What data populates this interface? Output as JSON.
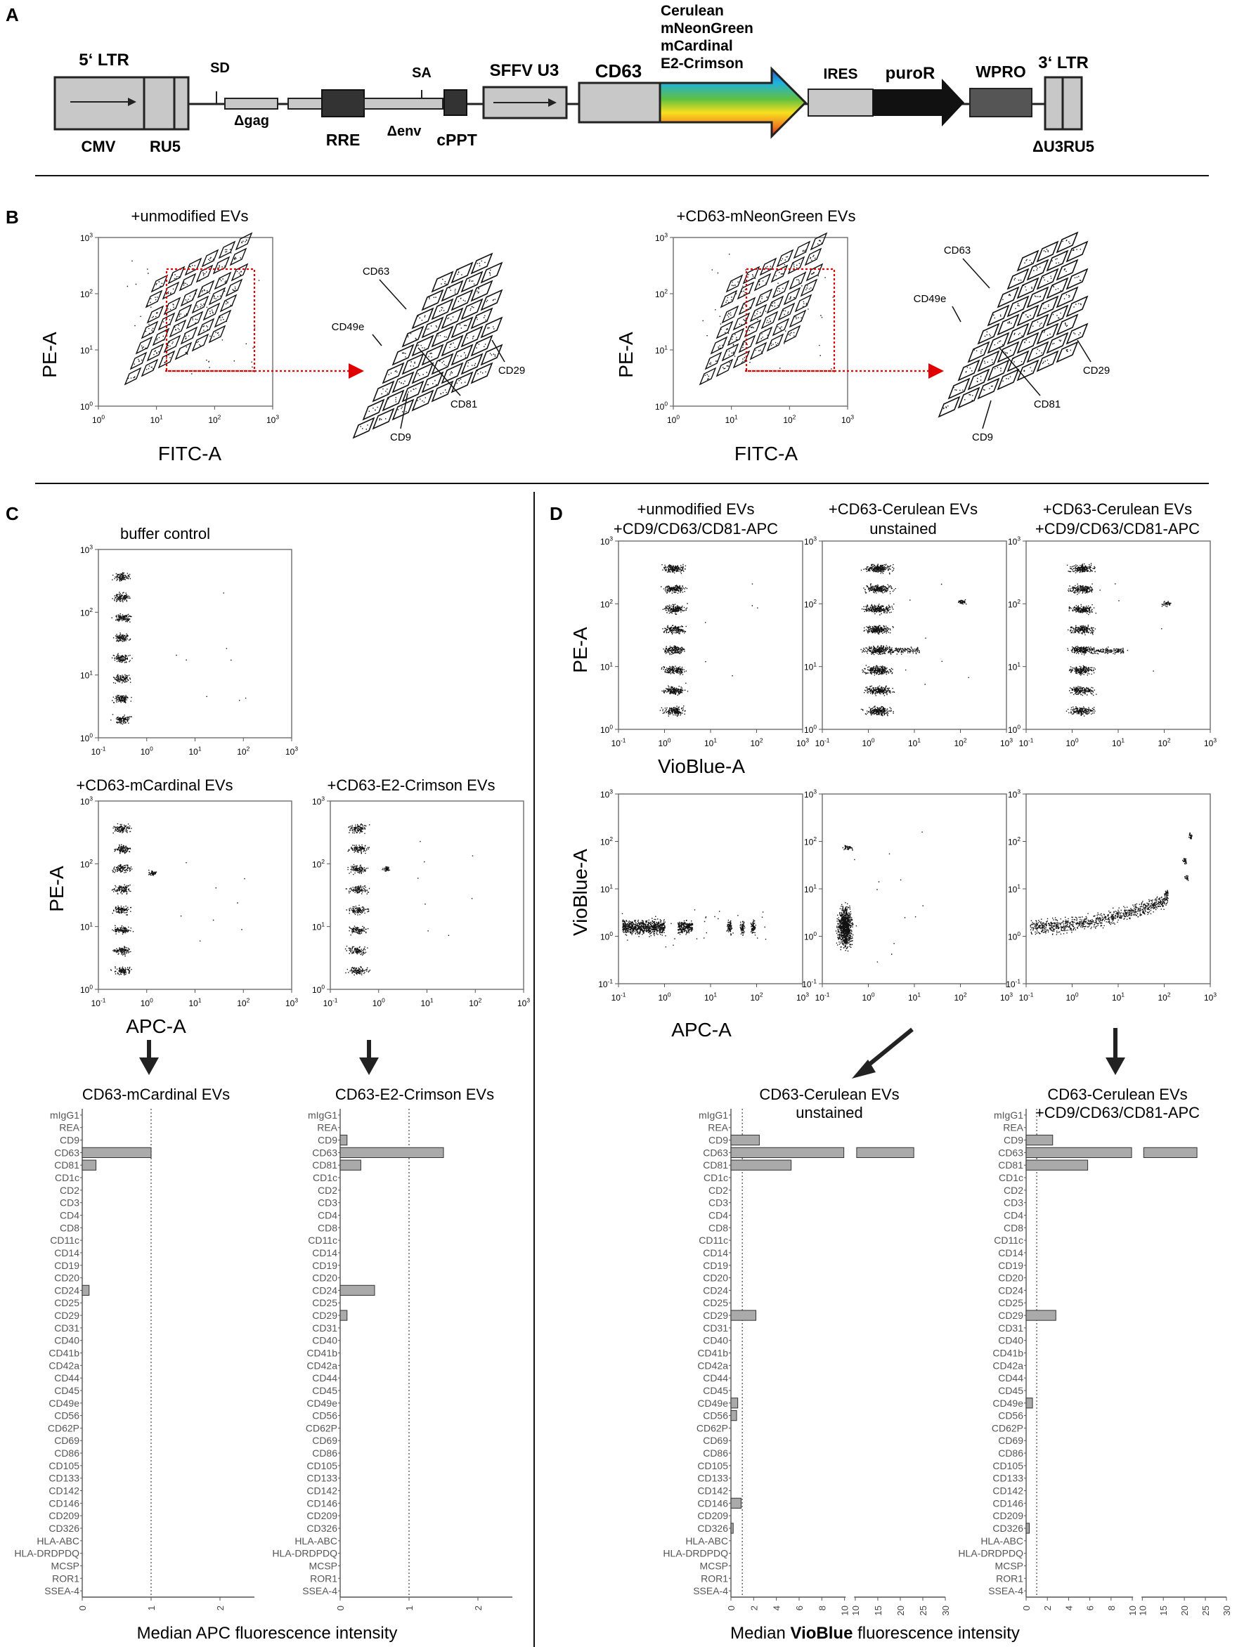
{
  "panels": {
    "A": {
      "letter": "A",
      "elements": {
        "ltr5": "5‘ LTR",
        "cmv": "CMV",
        "ru5": "RU5",
        "sd": "SD",
        "dgag": "Δgag",
        "rre": "RRE",
        "denv": "Δenv",
        "sa": "SA",
        "cppt": "cPPT",
        "sffv": "SFFV U3",
        "cd63": "CD63",
        "fp1": "Cerulean",
        "fp2": "mNeonGreen",
        "fp3": "mCardinal",
        "fp4": "E2-Crimson",
        "ires": "IRES",
        "puro": "puroR",
        "wpro": "WPRO",
        "ltr3": "3‘ LTR",
        "du3": "ΔU3RU5"
      }
    },
    "B": {
      "letter": "B",
      "left": {
        "title": "+unmodified EVs"
      },
      "right": {
        "title": "+CD63-mNeonGreen EVs"
      },
      "xlabel": "FITC-A",
      "ylabel": "PE-A",
      "markers": [
        "CD63",
        "CD49e",
        "CD81",
        "CD9",
        "CD29"
      ]
    },
    "C": {
      "letter": "C",
      "buffer_title": "buffer control",
      "left_title": "+CD63-mCardinal  EVs",
      "right_title": "+CD63-E2-Crimson  EVs",
      "ylabel": "PE-A",
      "xlabel": "APC-A",
      "bar_title_left": "CD63-mCardinal EVs",
      "bar_title_right": "CD63-E2-Crimson EVs",
      "bar_xlabel": "Median APC fluorescence intensity"
    },
    "D": {
      "letter": "D",
      "col1_title": [
        "+unmodified EVs",
        "+CD9/CD63/CD81-APC"
      ],
      "col2_title": [
        "+CD63-Cerulean EVs",
        "unstained"
      ],
      "col3_title": [
        "+CD63-Cerulean EVs",
        "+CD9/CD63/CD81-APC"
      ],
      "top_ylabel": "PE-A",
      "top_xlabel": "VioBlue-A",
      "bot_ylabel": "VioBlue-A",
      "bot_xlabel": "APC-A",
      "bar_title_left": [
        "CD63-Cerulean EVs",
        "unstained"
      ],
      "bar_title_right": [
        "CD63-Cerulean EVs",
        "+CD9/CD63/CD81-APC"
      ],
      "bar_xlabel_prefix": "Median ",
      "bar_xlabel_bold": "VioBlue",
      "bar_xlabel_suffix": " fluorescence intensity"
    }
  },
  "chart_data": [
    {
      "type": "bar",
      "id": "C-mCardinal",
      "title": "CD63-mCardinal EVs",
      "xlabel": "Median APC fluorescence intensity",
      "xlim": [
        0,
        2.5
      ],
      "xticks": [
        0,
        1,
        2
      ],
      "threshold": 1,
      "categories": [
        "mIgG1",
        "REA",
        "CD9",
        "CD63",
        "CD81",
        "CD1c",
        "CD2",
        "CD3",
        "CD4",
        "CD8",
        "CD11c",
        "CD14",
        "CD19",
        "CD20",
        "CD24",
        "CD25",
        "CD29",
        "CD31",
        "CD40",
        "CD41b",
        "CD42a",
        "CD44",
        "CD45",
        "CD49e",
        "CD56",
        "CD62P",
        "CD69",
        "CD86",
        "CD105",
        "CD133",
        "CD142",
        "CD146",
        "CD209",
        "CD326",
        "HLA-ABC",
        "HLA-DRDPDQ",
        "MCSP",
        "ROR1",
        "SSEA-4"
      ],
      "values": [
        0,
        0,
        0,
        1.0,
        0.2,
        0,
        0,
        0,
        0,
        0,
        0,
        0,
        0,
        0,
        0.1,
        0,
        0,
        0,
        0,
        0,
        0,
        0,
        0,
        0,
        0,
        0,
        0,
        0,
        0,
        0,
        0,
        0,
        0,
        0,
        0,
        0,
        0,
        0,
        0
      ]
    },
    {
      "type": "bar",
      "id": "C-E2Crimson",
      "title": "CD63-E2-Crimson EVs",
      "xlabel": "Median APC fluorescence intensity",
      "xlim": [
        0,
        2.5
      ],
      "xticks": [
        0,
        1,
        2
      ],
      "threshold": 1,
      "categories": [
        "mIgG1",
        "REA",
        "CD9",
        "CD63",
        "CD81",
        "CD1c",
        "CD2",
        "CD3",
        "CD4",
        "CD8",
        "CD11c",
        "CD14",
        "CD19",
        "CD20",
        "CD24",
        "CD25",
        "CD29",
        "CD31",
        "CD40",
        "CD41b",
        "CD42a",
        "CD44",
        "CD45",
        "CD49e",
        "CD56",
        "CD62P",
        "CD69",
        "CD86",
        "CD105",
        "CD133",
        "CD142",
        "CD146",
        "CD209",
        "CD326",
        "HLA-ABC",
        "HLA-DRDPDQ",
        "MCSP",
        "ROR1",
        "SSEA-4"
      ],
      "values": [
        0,
        0,
        0.1,
        1.5,
        0.3,
        0,
        0,
        0,
        0,
        0,
        0,
        0,
        0,
        0,
        0.5,
        0,
        0.1,
        0,
        0,
        0,
        0,
        0,
        0,
        0,
        0,
        0,
        0,
        0,
        0,
        0,
        0,
        0,
        0,
        0,
        0,
        0,
        0,
        0,
        0
      ]
    },
    {
      "type": "bar",
      "id": "D-unstained",
      "title": "CD63-Cerulean EVs unstained",
      "xlabel": "Median VioBlue fluorescence intensity",
      "xlim": [
        0,
        30
      ],
      "axis_break": [
        10,
        10
      ],
      "xticks_left": [
        0,
        2,
        4,
        6,
        8,
        10
      ],
      "xticks_right": [
        10,
        15,
        20,
        25,
        30
      ],
      "threshold": 1,
      "categories": [
        "mIgG1",
        "REA",
        "CD9",
        "CD63",
        "CD81",
        "CD1c",
        "CD2",
        "CD3",
        "CD4",
        "CD8",
        "CD11c",
        "CD14",
        "CD19",
        "CD20",
        "CD24",
        "CD25",
        "CD29",
        "CD31",
        "CD40",
        "CD41b",
        "CD42a",
        "CD44",
        "CD45",
        "CD49e",
        "CD56",
        "CD62P",
        "CD69",
        "CD86",
        "CD105",
        "CD133",
        "CD142",
        "CD146",
        "CD209",
        "CD326",
        "HLA-ABC",
        "HLA-DRDPDQ",
        "MCSP",
        "ROR1",
        "SSEA-4"
      ],
      "values": [
        0,
        0,
        2.5,
        23,
        5.3,
        0,
        0,
        0,
        0,
        0,
        0,
        0,
        0,
        0,
        0,
        0,
        2.2,
        0,
        0,
        0,
        0,
        0,
        0,
        0.6,
        0.5,
        0,
        0,
        0,
        0,
        0,
        0,
        0.9,
        0,
        0.2,
        0,
        0,
        0,
        0,
        0
      ]
    },
    {
      "type": "bar",
      "id": "D-stained",
      "title": "CD63-Cerulean EVs +CD9/CD63/CD81-APC",
      "xlabel": "Median VioBlue fluorescence intensity",
      "xlim": [
        0,
        30
      ],
      "axis_break": [
        10,
        10
      ],
      "xticks_left": [
        0,
        2,
        4,
        6,
        8,
        10
      ],
      "xticks_right": [
        10,
        15,
        20,
        25,
        30
      ],
      "threshold": 1,
      "categories": [
        "mIgG1",
        "REA",
        "CD9",
        "CD63",
        "CD81",
        "CD1c",
        "CD2",
        "CD3",
        "CD4",
        "CD8",
        "CD11c",
        "CD14",
        "CD19",
        "CD20",
        "CD24",
        "CD25",
        "CD29",
        "CD31",
        "CD40",
        "CD41b",
        "CD42a",
        "CD44",
        "CD45",
        "CD49e",
        "CD56",
        "CD62P",
        "CD69",
        "CD86",
        "CD105",
        "CD133",
        "CD142",
        "CD146",
        "CD209",
        "CD326",
        "HLA-ABC",
        "HLA-DRDPDQ",
        "MCSP",
        "ROR1",
        "SSEA-4"
      ],
      "values": [
        0,
        0,
        2.5,
        23,
        5.8,
        0,
        0,
        0,
        0,
        0,
        0,
        0,
        0,
        0,
        0,
        0,
        2.8,
        0,
        0,
        0,
        0,
        0,
        0,
        0.6,
        0,
        0,
        0,
        0,
        0,
        0,
        0,
        0,
        0,
        0.3,
        0,
        0,
        0,
        0,
        0
      ]
    },
    {
      "type": "scatter",
      "id": "flow-axes",
      "xlim_log": [
        0.1,
        1000
      ],
      "ylim_log": [
        1,
        1000
      ],
      "x_ticks": [
        "10^-1",
        "10^0",
        "10^1",
        "10^2",
        "10^3"
      ],
      "y_ticks": [
        "10^0",
        "10^1",
        "10^2",
        "10^3"
      ]
    }
  ]
}
